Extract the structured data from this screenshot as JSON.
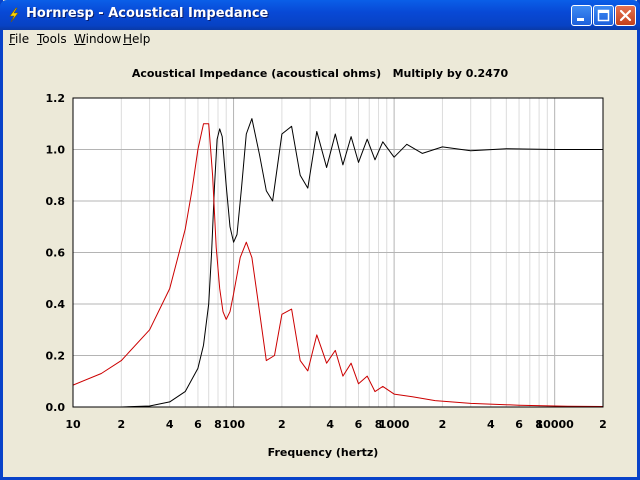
{
  "window": {
    "title": "Hornresp - Acoustical Impedance",
    "icons": {
      "app": "lightning-bolt-icon",
      "minimize": "minimize-icon",
      "maximize": "maximize-icon",
      "close": "close-icon"
    }
  },
  "menu": [
    {
      "mnemonic": "F",
      "rest": "ile"
    },
    {
      "mnemonic": "T",
      "rest": "ools"
    },
    {
      "mnemonic": "W",
      "rest": "indow"
    },
    {
      "mnemonic": "H",
      "rest": "elp"
    }
  ],
  "chart_data": {
    "type": "line",
    "title": "Acoustical Impedance (acoustical ohms)   Multiply by 0.2470",
    "xlabel": "Frequency (hertz)",
    "ylabel": "",
    "x_scale": "log",
    "xlim": [
      10,
      20000
    ],
    "ylim": [
      0,
      1.2
    ],
    "x_ticks": [
      {
        "value": 10,
        "label": "10"
      },
      {
        "value": 20,
        "label": "2"
      },
      {
        "value": 40,
        "label": "4"
      },
      {
        "value": 60,
        "label": "6"
      },
      {
        "value": 80,
        "label": "8"
      },
      {
        "value": 100,
        "label": "100"
      },
      {
        "value": 200,
        "label": "2"
      },
      {
        "value": 400,
        "label": "4"
      },
      {
        "value": 600,
        "label": "6"
      },
      {
        "value": 800,
        "label": "8"
      },
      {
        "value": 1000,
        "label": "1000"
      },
      {
        "value": 2000,
        "label": "2"
      },
      {
        "value": 4000,
        "label": "4"
      },
      {
        "value": 6000,
        "label": "6"
      },
      {
        "value": 8000,
        "label": "8"
      },
      {
        "value": 10000,
        "label": "10000"
      },
      {
        "value": 20000,
        "label": "2"
      }
    ],
    "y_ticks": [
      "0.0",
      "0.2",
      "0.4",
      "0.6",
      "0.8",
      "1.0",
      "1.2"
    ],
    "grid": true,
    "series": [
      {
        "color": "#000000",
        "x": [
          20,
          30,
          40,
          50,
          60,
          65,
          70,
          73,
          76,
          79,
          82,
          85,
          90,
          95,
          100,
          105,
          112,
          120,
          130,
          145,
          160,
          175,
          200,
          230,
          260,
          290,
          330,
          380,
          430,
          480,
          540,
          600,
          680,
          760,
          850,
          1000,
          1200,
          1500,
          2000,
          3000,
          5000,
          10000,
          20000
        ],
        "y": [
          0.0,
          0.004,
          0.02,
          0.06,
          0.15,
          0.24,
          0.4,
          0.6,
          0.85,
          1.04,
          1.08,
          1.05,
          0.86,
          0.7,
          0.64,
          0.67,
          0.85,
          1.06,
          1.12,
          0.98,
          0.84,
          0.8,
          1.06,
          1.09,
          0.9,
          0.85,
          1.07,
          0.93,
          1.06,
          0.94,
          1.05,
          0.95,
          1.04,
          0.96,
          1.03,
          0.97,
          1.02,
          0.985,
          1.01,
          0.995,
          1.003,
          1.0,
          1.0
        ]
      },
      {
        "color": "#cc0000",
        "x": [
          10,
          15,
          20,
          30,
          40,
          50,
          55,
          60,
          65,
          70,
          74,
          78,
          82,
          86,
          90,
          95,
          100,
          110,
          120,
          130,
          140,
          160,
          180,
          200,
          230,
          260,
          290,
          330,
          380,
          430,
          480,
          540,
          600,
          680,
          760,
          850,
          1000,
          1300,
          1800,
          3000,
          6000,
          12000,
          20000
        ],
        "y": [
          0.085,
          0.13,
          0.18,
          0.3,
          0.46,
          0.69,
          0.84,
          1.0,
          1.1,
          1.1,
          0.9,
          0.62,
          0.46,
          0.37,
          0.34,
          0.37,
          0.44,
          0.58,
          0.64,
          0.58,
          0.44,
          0.18,
          0.2,
          0.36,
          0.38,
          0.18,
          0.14,
          0.28,
          0.17,
          0.22,
          0.12,
          0.17,
          0.09,
          0.12,
          0.06,
          0.08,
          0.05,
          0.04,
          0.025,
          0.014,
          0.007,
          0.003,
          0.002
        ]
      }
    ]
  }
}
